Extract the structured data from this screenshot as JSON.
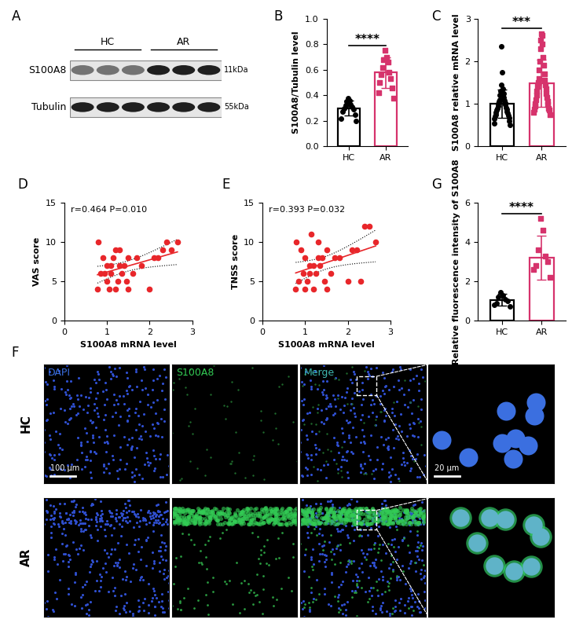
{
  "chart_data": [
    {
      "panel": "B",
      "type": "bar",
      "categories": [
        "HC",
        "AR"
      ],
      "values": [
        0.3,
        0.58
      ],
      "error": [
        0.06,
        0.12
      ],
      "points": [
        [
          0.38,
          0.36,
          0.35,
          0.33,
          0.32,
          0.31,
          0.3,
          0.29,
          0.27,
          0.25,
          0.22,
          0.2
        ],
        [
          0.75,
          0.7,
          0.68,
          0.66,
          0.62,
          0.58,
          0.56,
          0.53,
          0.5,
          0.46,
          0.42,
          0.38
        ]
      ],
      "colors": [
        "#000000",
        "#d6336c"
      ],
      "y_label": "S100A8/Tubulin level",
      "annotation": "****",
      "ylim": [
        0,
        1.0
      ],
      "yticks": [
        {
          "value": 0,
          "label": "0.0"
        },
        {
          "value": 0.2,
          "label": "0.2"
        },
        {
          "value": 0.4,
          "label": "0.4"
        },
        {
          "value": 0.6,
          "label": "0.6"
        },
        {
          "value": 0.8,
          "label": "0.8"
        },
        {
          "value": 1.0,
          "label": "1.0"
        }
      ]
    },
    {
      "panel": "C",
      "type": "bar",
      "categories": [
        "HC",
        "AR"
      ],
      "values": [
        1.0,
        1.48
      ],
      "error": [
        0.33,
        0.55
      ],
      "points": [
        [
          2.35,
          1.75,
          1.45,
          1.35,
          1.3,
          1.25,
          1.2,
          1.15,
          1.1,
          1.08,
          1.05,
          1.02,
          1.0,
          0.98,
          0.95,
          0.92,
          0.9,
          0.88,
          0.85,
          0.82,
          0.8,
          0.78,
          0.75,
          0.72,
          0.7,
          0.68,
          0.65,
          0.6,
          0.55,
          0.5
        ],
        [
          2.65,
          2.6,
          2.5,
          2.4,
          2.3,
          2.1,
          2.0,
          1.9,
          1.8,
          1.7,
          1.6,
          1.55,
          1.5,
          1.45,
          1.4,
          1.35,
          1.3,
          1.25,
          1.2,
          1.15,
          1.1,
          1.05,
          1.0,
          0.98,
          0.95,
          0.9,
          0.88,
          0.85,
          0.8,
          0.75
        ]
      ],
      "colors": [
        "#000000",
        "#d6336c"
      ],
      "y_label": "S100A8 relative mRNA level",
      "annotation": "***",
      "ylim": [
        0,
        3
      ],
      "yticks": [
        0,
        1,
        2,
        3
      ]
    },
    {
      "panel": "D",
      "type": "scatter",
      "x": [
        0.78,
        0.8,
        0.85,
        0.9,
        0.95,
        1.0,
        1.0,
        1.05,
        1.1,
        1.1,
        1.15,
        1.2,
        1.2,
        1.25,
        1.3,
        1.3,
        1.35,
        1.4,
        1.45,
        1.5,
        1.5,
        1.6,
        1.7,
        1.8,
        2.0,
        2.1,
        2.2,
        2.3,
        2.4,
        2.5,
        2.65
      ],
      "values": [
        4,
        10,
        6,
        8,
        6,
        7,
        5,
        4,
        6,
        7,
        8,
        9,
        4,
        5,
        7,
        9,
        6,
        7,
        5,
        8,
        4,
        6,
        8,
        7,
        4,
        8,
        8,
        9,
        10,
        9,
        10
      ],
      "color": "#e8262a",
      "x_label": "S100A8 mRNA level",
      "y_label": "VAS score",
      "annotation": "r=0.464 P=0.010",
      "xlim": [
        0,
        3
      ],
      "xticks": [
        0,
        1,
        2,
        3
      ],
      "ylim": [
        0,
        15
      ],
      "yticks": [
        0,
        5,
        10,
        15
      ]
    },
    {
      "panel": "E",
      "type": "scatter",
      "x": [
        0.78,
        0.8,
        0.85,
        0.9,
        0.95,
        1.0,
        1.0,
        1.05,
        1.1,
        1.1,
        1.15,
        1.2,
        1.2,
        1.25,
        1.3,
        1.3,
        1.35,
        1.4,
        1.45,
        1.5,
        1.5,
        1.6,
        1.7,
        1.8,
        2.0,
        2.1,
        2.2,
        2.3,
        2.4,
        2.5,
        2.65
      ],
      "values": [
        4,
        10,
        5,
        9,
        6,
        8,
        4,
        5,
        6,
        7,
        11,
        7,
        4,
        6,
        8,
        10,
        7,
        8,
        5,
        9,
        4,
        6,
        8,
        8,
        5,
        9,
        9,
        5,
        12,
        12,
        10
      ],
      "color": "#e8262a",
      "x_label": "S100A8 mRNA level",
      "y_label": "TNSS score",
      "annotation": "r=0.393 P=0.032",
      "xlim": [
        0,
        3
      ],
      "xticks": [
        0,
        1,
        2,
        3
      ],
      "ylim": [
        0,
        15
      ],
      "yticks": [
        0,
        5,
        10,
        15
      ]
    },
    {
      "panel": "G",
      "type": "bar",
      "categories": [
        "HC",
        "AR"
      ],
      "values": [
        1.06,
        3.2
      ],
      "error": [
        0.3,
        1.1
      ],
      "points": [
        [
          1.45,
          1.3,
          1.2,
          1.1,
          1.0,
          0.9,
          0.8,
          0.75
        ],
        [
          5.2,
          4.6,
          3.6,
          3.3,
          3.0,
          2.8,
          2.6,
          2.2
        ]
      ],
      "colors": [
        "#000000",
        "#d6336c"
      ],
      "y_label": "Relative fluorescence intensity of S100A8",
      "annotation": "****",
      "ylim": [
        0,
        6
      ],
      "yticks": [
        0,
        2,
        4,
        6
      ]
    }
  ],
  "blot": {
    "panel": "A",
    "groups": [
      "HC",
      "AR"
    ],
    "rows": [
      {
        "name": "S100A8",
        "size": "11kDa"
      },
      {
        "name": "Tubulin",
        "size": "55kDa"
      }
    ]
  },
  "micrographs": {
    "panel": "F",
    "groups": [
      "HC",
      "AR"
    ],
    "channels": [
      "DAPI",
      "S100A8",
      "Merge"
    ],
    "scale_bars": [
      "100 μm",
      "20 μm"
    ]
  }
}
